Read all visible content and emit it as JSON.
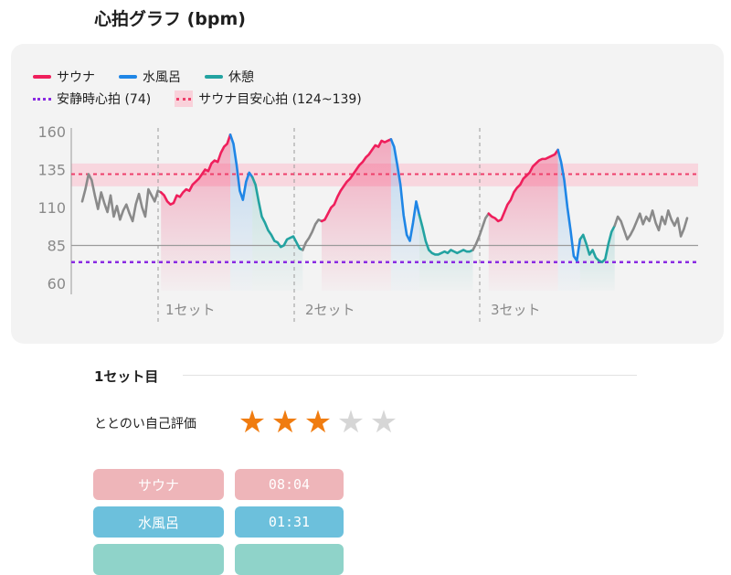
{
  "header": {
    "title": "心拍グラフ (bpm)"
  },
  "chart_data": {
    "type": "line",
    "y_ticks": [
      160,
      135,
      110,
      85,
      60
    ],
    "ylim": [
      58,
      160
    ],
    "set_labels": [
      "1セット",
      "2セット",
      "3セット"
    ],
    "legend": {
      "sauna": "サウナ",
      "mizuburo": "水風呂",
      "kyukei": "休憩",
      "resting": "安静時心拍 (74)",
      "target": "サウナ目安心拍 (124~139)"
    },
    "resting_hr": 74,
    "target_range": [
      124,
      139
    ],
    "target_line": 132,
    "baseline": 85,
    "colors": {
      "sauna": "#ef1f5c",
      "mizuburo": "#1f86e6",
      "kyukei": "#23a3a1",
      "other": "#8a8a8a",
      "resting": "#8a2be2",
      "target": "#ee3f6a"
    },
    "series": [
      {
        "kind": "other",
        "points": [
          [
            0,
            114
          ],
          [
            1,
            122
          ],
          [
            2,
            132
          ],
          [
            3,
            128
          ],
          [
            4,
            118
          ],
          [
            5,
            109
          ],
          [
            6,
            120
          ],
          [
            7,
            113
          ],
          [
            8,
            107
          ],
          [
            9,
            118
          ],
          [
            10,
            104
          ],
          [
            11,
            111
          ],
          [
            12,
            102
          ],
          [
            13,
            108
          ],
          [
            14,
            112
          ],
          [
            15,
            106
          ],
          [
            16,
            101
          ],
          [
            17,
            112
          ],
          [
            18,
            119
          ],
          [
            19,
            110
          ],
          [
            20,
            104
          ],
          [
            21,
            122
          ],
          [
            22,
            118
          ],
          [
            23,
            114
          ],
          [
            24,
            121
          ],
          [
            25,
            120
          ]
        ]
      },
      {
        "kind": "sauna",
        "points": [
          [
            25,
            120
          ],
          [
            26,
            118
          ],
          [
            27,
            114
          ],
          [
            28,
            112
          ],
          [
            29,
            113
          ],
          [
            30,
            118
          ],
          [
            31,
            117
          ],
          [
            32,
            120
          ],
          [
            33,
            122
          ],
          [
            34,
            121
          ],
          [
            35,
            125
          ],
          [
            36,
            127
          ],
          [
            37,
            129
          ],
          [
            38,
            132
          ],
          [
            39,
            135
          ],
          [
            40,
            134
          ],
          [
            41,
            139
          ],
          [
            42,
            141
          ],
          [
            43,
            140
          ],
          [
            44,
            146
          ],
          [
            45,
            150
          ],
          [
            46,
            152
          ],
          [
            47,
            158
          ]
        ]
      },
      {
        "kind": "mizuburo",
        "points": [
          [
            47,
            158
          ],
          [
            48,
            152
          ],
          [
            49,
            138
          ],
          [
            50,
            121
          ],
          [
            51,
            115
          ],
          [
            52,
            127
          ],
          [
            53,
            133
          ],
          [
            54,
            130
          ]
        ]
      },
      {
        "kind": "kyukei",
        "points": [
          [
            54,
            130
          ],
          [
            55,
            125
          ],
          [
            56,
            114
          ],
          [
            57,
            104
          ],
          [
            58,
            100
          ],
          [
            59,
            95
          ],
          [
            60,
            92
          ],
          [
            61,
            88
          ],
          [
            62,
            87
          ],
          [
            63,
            84
          ],
          [
            64,
            85
          ],
          [
            65,
            89
          ],
          [
            66,
            90
          ],
          [
            67,
            91
          ],
          [
            68,
            87
          ],
          [
            69,
            83
          ],
          [
            70,
            82
          ]
        ]
      },
      {
        "kind": "other",
        "points": [
          [
            70,
            82
          ],
          [
            71,
            87
          ],
          [
            72,
            90
          ],
          [
            73,
            94
          ],
          [
            74,
            99
          ],
          [
            75,
            102
          ],
          [
            76,
            101
          ]
        ]
      },
      {
        "kind": "sauna",
        "points": [
          [
            76,
            101
          ],
          [
            77,
            102
          ],
          [
            78,
            106
          ],
          [
            79,
            110
          ],
          [
            80,
            112
          ],
          [
            81,
            117
          ],
          [
            82,
            121
          ],
          [
            83,
            124
          ],
          [
            84,
            127
          ],
          [
            85,
            129
          ],
          [
            86,
            132
          ],
          [
            87,
            135
          ],
          [
            88,
            138
          ],
          [
            89,
            140
          ],
          [
            90,
            143
          ],
          [
            91,
            145
          ],
          [
            92,
            148
          ],
          [
            93,
            151
          ],
          [
            94,
            150
          ],
          [
            95,
            154
          ],
          [
            96,
            153
          ],
          [
            97,
            154
          ],
          [
            98,
            155
          ]
        ]
      },
      {
        "kind": "mizuburo",
        "points": [
          [
            98,
            155
          ],
          [
            99,
            150
          ],
          [
            100,
            138
          ],
          [
            101,
            125
          ],
          [
            102,
            105
          ],
          [
            103,
            92
          ],
          [
            104,
            88
          ],
          [
            105,
            100
          ],
          [
            106,
            114
          ],
          [
            107,
            105
          ]
        ]
      },
      {
        "kind": "kyukei",
        "points": [
          [
            107,
            105
          ],
          [
            108,
            97
          ],
          [
            109,
            88
          ],
          [
            110,
            82
          ],
          [
            111,
            80
          ],
          [
            112,
            79
          ],
          [
            113,
            79
          ],
          [
            114,
            80
          ],
          [
            115,
            81
          ],
          [
            116,
            80
          ],
          [
            117,
            82
          ],
          [
            118,
            81
          ],
          [
            119,
            80
          ],
          [
            120,
            81
          ],
          [
            121,
            82
          ],
          [
            122,
            81
          ],
          [
            123,
            81
          ],
          [
            124,
            82
          ]
        ]
      },
      {
        "kind": "other",
        "points": [
          [
            124,
            82
          ],
          [
            125,
            86
          ],
          [
            126,
            91
          ],
          [
            127,
            97
          ],
          [
            128,
            103
          ],
          [
            129,
            106
          ]
        ]
      },
      {
        "kind": "sauna",
        "points": [
          [
            129,
            106
          ],
          [
            130,
            104
          ],
          [
            131,
            103
          ],
          [
            132,
            101
          ],
          [
            133,
            102
          ],
          [
            134,
            107
          ],
          [
            135,
            112
          ],
          [
            136,
            115
          ],
          [
            137,
            120
          ],
          [
            138,
            123
          ],
          [
            139,
            125
          ],
          [
            140,
            129
          ],
          [
            141,
            131
          ],
          [
            142,
            133
          ],
          [
            143,
            137
          ],
          [
            144,
            139
          ],
          [
            145,
            141
          ],
          [
            146,
            142
          ],
          [
            147,
            142
          ],
          [
            148,
            143
          ],
          [
            149,
            144
          ],
          [
            150,
            145
          ],
          [
            151,
            148
          ]
        ]
      },
      {
        "kind": "mizuburo",
        "points": [
          [
            151,
            148
          ],
          [
            152,
            140
          ],
          [
            153,
            128
          ],
          [
            154,
            110
          ],
          [
            155,
            95
          ],
          [
            156,
            78
          ],
          [
            157,
            75
          ],
          [
            158,
            89
          ]
        ]
      },
      {
        "kind": "kyukei",
        "points": [
          [
            158,
            89
          ],
          [
            159,
            92
          ],
          [
            160,
            86
          ],
          [
            161,
            79
          ],
          [
            162,
            82
          ],
          [
            163,
            77
          ],
          [
            164,
            75
          ],
          [
            165,
            74
          ],
          [
            166,
            76
          ],
          [
            167,
            86
          ],
          [
            168,
            94
          ],
          [
            169,
            98
          ]
        ]
      },
      {
        "kind": "other",
        "points": [
          [
            169,
            98
          ],
          [
            170,
            104
          ],
          [
            171,
            101
          ],
          [
            172,
            95
          ],
          [
            173,
            89
          ],
          [
            174,
            92
          ],
          [
            175,
            96
          ],
          [
            176,
            101
          ],
          [
            177,
            106
          ],
          [
            178,
            99
          ],
          [
            179,
            104
          ],
          [
            180,
            101
          ],
          [
            181,
            108
          ],
          [
            182,
            100
          ],
          [
            183,
            95
          ],
          [
            184,
            104
          ],
          [
            185,
            99
          ],
          [
            186,
            108
          ],
          [
            187,
            102
          ],
          [
            188,
            98
          ],
          [
            189,
            103
          ],
          [
            190,
            91
          ],
          [
            191,
            96
          ],
          [
            192,
            103
          ]
        ]
      }
    ]
  },
  "set_detail": {
    "heading": "1セット目",
    "rating_label": "ととのい自己評価",
    "rating": 3,
    "rating_max": 5,
    "rows": [
      {
        "label": "サウナ",
        "value": "08:04",
        "color": "#eeb5b9"
      },
      {
        "label": "水風呂",
        "value": "01:31",
        "color": "#6cc0dc"
      }
    ]
  }
}
